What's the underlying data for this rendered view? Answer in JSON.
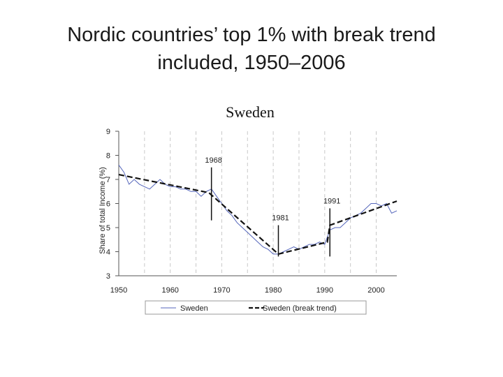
{
  "slide": {
    "title_line1": "Nordic countries’ top 1% with break trend",
    "title_line2": "included, 1950–2006"
  },
  "chart_data": {
    "type": "line",
    "title": "Sweden",
    "xlabel": "",
    "ylabel": "Share of total Income (%)",
    "xlim": [
      1950,
      2004
    ],
    "ylim": [
      3,
      9
    ],
    "x_ticks": [
      1950,
      1960,
      1970,
      1980,
      1990,
      2000
    ],
    "y_ticks": [
      3,
      4,
      5,
      6,
      7,
      8,
      9
    ],
    "grid": "vertical-dashed",
    "legend_position": "bottom",
    "series": [
      {
        "name": "Sweden",
        "style": "solid",
        "color": "#5566bb",
        "x": [
          1950,
          1951,
          1952,
          1953,
          1954,
          1955,
          1956,
          1957,
          1958,
          1959,
          1960,
          1961,
          1962,
          1963,
          1964,
          1965,
          1966,
          1967,
          1968,
          1969,
          1970,
          1971,
          1972,
          1973,
          1974,
          1975,
          1976,
          1977,
          1978,
          1979,
          1980,
          1981,
          1982,
          1983,
          1984,
          1985,
          1986,
          1987,
          1988,
          1989,
          1990,
          1991,
          1992,
          1993,
          1994,
          1995,
          1996,
          1997,
          1998,
          1999,
          2000,
          2001,
          2002,
          2003,
          2004
        ],
        "y": [
          7.6,
          7.3,
          6.8,
          7.0,
          6.8,
          6.7,
          6.6,
          6.8,
          7.0,
          6.8,
          6.7,
          6.7,
          6.6,
          6.6,
          6.5,
          6.5,
          6.3,
          6.5,
          6.6,
          6.3,
          6.0,
          5.7,
          5.5,
          5.2,
          5.0,
          4.8,
          4.6,
          4.4,
          4.2,
          4.1,
          3.9,
          3.9,
          4.0,
          4.1,
          4.2,
          4.1,
          4.2,
          4.3,
          4.3,
          4.4,
          4.3,
          4.9,
          5.0,
          5.0,
          5.2,
          5.4,
          5.5,
          5.6,
          5.8,
          6.0,
          6.0,
          5.9,
          6.0,
          5.6,
          5.7
        ]
      },
      {
        "name": "Sweden (break trend)",
        "style": "dashed",
        "color": "#111111",
        "x": [
          1950,
          1967.5,
          1981,
          1990.5,
          1991,
          2004
        ],
        "y": [
          7.2,
          6.45,
          3.9,
          4.4,
          5.1,
          6.1
        ]
      }
    ],
    "annotations": [
      {
        "label": "1968",
        "x": 1968,
        "line_from": 5.3,
        "line_to": 7.5
      },
      {
        "label": "1981",
        "x": 1981,
        "line_from": 3.8,
        "line_to": 5.1
      },
      {
        "label": "1991",
        "x": 1991,
        "line_from": 3.8,
        "line_to": 5.8
      }
    ]
  }
}
